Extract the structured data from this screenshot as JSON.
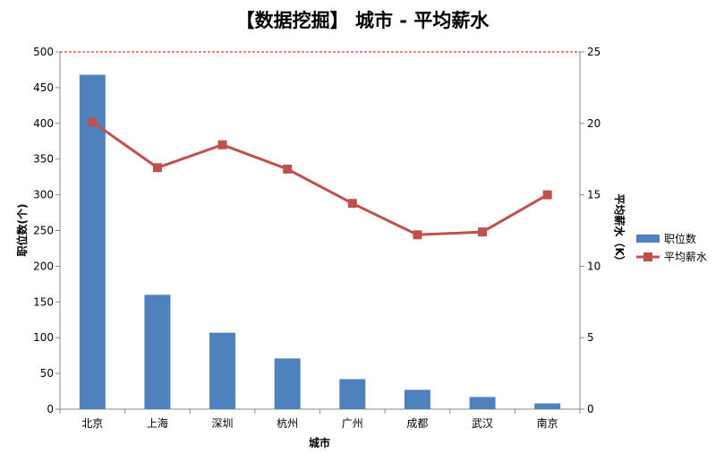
{
  "chart_data": {
    "type": "bar+line",
    "title": "【数据挖掘】 城市 - 平均薪水",
    "xlabel": "城市",
    "ylabel_left": "职位数(个)",
    "ylabel_right": "平均薪水（K）",
    "categories": [
      "北京",
      "上海",
      "深圳",
      "杭州",
      "广州",
      "成都",
      "武汉",
      "南京"
    ],
    "ylim_left": [
      0,
      500
    ],
    "ylim_right": [
      0,
      25
    ],
    "yticks_left": [
      0,
      50,
      100,
      150,
      200,
      250,
      300,
      350,
      400,
      450,
      500
    ],
    "yticks_right": [
      0,
      5,
      10,
      15,
      20,
      25
    ],
    "series": [
      {
        "name": "职位数",
        "type": "bar",
        "axis": "left",
        "color": "#4f81bd",
        "values": [
          468,
          160,
          107,
          71,
          42,
          27,
          17,
          8
        ]
      },
      {
        "name": "平均薪水",
        "type": "line",
        "axis": "right",
        "color": "#c0504d",
        "marker": "square",
        "values": [
          20.1,
          16.9,
          18.5,
          16.8,
          14.4,
          12.2,
          12.4,
          15.0
        ]
      }
    ],
    "grid": false,
    "reference_line": {
      "axis": "left",
      "value": 500,
      "style": "dashed",
      "color": "#ff0000"
    },
    "legend_position": "right"
  }
}
